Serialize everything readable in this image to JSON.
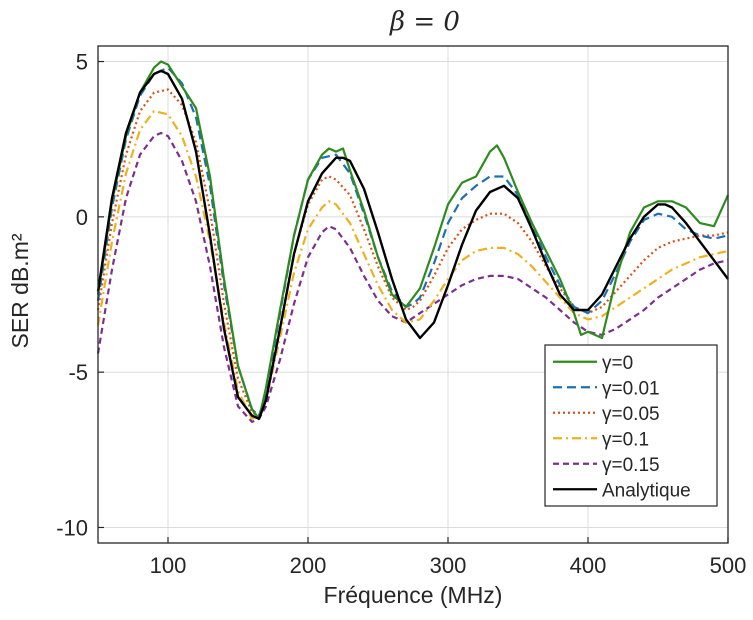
{
  "chart_data": {
    "type": "line",
    "title": "β = 0",
    "xlabel": "Fréquence (MHz)",
    "ylabel": "SER  dB.m²",
    "xlim": [
      50,
      500
    ],
    "ylim": [
      -10.5,
      5.5
    ],
    "xticks": [
      100,
      200,
      300,
      400,
      500
    ],
    "xtick_labels": [
      "100",
      "200",
      "300",
      "400",
      "500"
    ],
    "yticks": [
      5,
      0,
      -5,
      -10
    ],
    "ytick_labels": [
      "5",
      "0",
      "-5",
      "-10"
    ],
    "grid": true,
    "legend_position": "bottom-right",
    "series": [
      {
        "name": "γ=0",
        "color": "#2e8b1e",
        "dash": "solid",
        "x": [
          50,
          60,
          70,
          80,
          90,
          95,
          100,
          110,
          120,
          130,
          140,
          150,
          160,
          165,
          170,
          180,
          190,
          200,
          210,
          215,
          220,
          225,
          230,
          240,
          250,
          260,
          270,
          275,
          280,
          290,
          300,
          310,
          320,
          330,
          335,
          340,
          350,
          360,
          370,
          380,
          390,
          395,
          400,
          410,
          420,
          430,
          440,
          450,
          460,
          470,
          480,
          490,
          500
        ],
        "y": [
          -2.5,
          0.5,
          2.6,
          4.0,
          4.8,
          5.0,
          4.9,
          4.2,
          3.5,
          1.3,
          -2.0,
          -4.8,
          -6.2,
          -6.5,
          -5.5,
          -3.0,
          -0.6,
          1.2,
          2.0,
          2.2,
          2.1,
          2.2,
          1.5,
          0.2,
          -1.3,
          -2.5,
          -2.9,
          -2.6,
          -2.3,
          -1.0,
          0.4,
          1.1,
          1.3,
          2.1,
          2.3,
          1.9,
          0.8,
          -0.2,
          -1.1,
          -2.0,
          -3.1,
          -3.8,
          -3.7,
          -3.9,
          -2.0,
          -0.5,
          0.3,
          0.5,
          0.5,
          0.3,
          -0.2,
          -0.3,
          0.7
        ]
      },
      {
        "name": "γ=0.01",
        "color": "#1f6fb4",
        "dash": "long",
        "x": [
          50,
          60,
          70,
          80,
          90,
          100,
          110,
          120,
          130,
          140,
          150,
          160,
          165,
          170,
          180,
          190,
          200,
          210,
          220,
          230,
          240,
          250,
          260,
          270,
          275,
          280,
          290,
          300,
          310,
          320,
          330,
          340,
          350,
          360,
          370,
          380,
          390,
          400,
          410,
          420,
          430,
          440,
          450,
          460,
          470,
          480,
          490,
          500
        ],
        "y": [
          -2.7,
          0.3,
          2.5,
          3.9,
          4.6,
          4.8,
          4.3,
          3.2,
          1.0,
          -2.2,
          -4.8,
          -6.2,
          -6.4,
          -5.7,
          -3.1,
          -0.6,
          1.2,
          1.9,
          2.0,
          1.4,
          0.1,
          -1.3,
          -2.4,
          -2.9,
          -2.8,
          -2.6,
          -1.5,
          -0.2,
          0.6,
          1.0,
          1.3,
          1.3,
          0.7,
          -0.3,
          -1.3,
          -2.2,
          -2.9,
          -3.1,
          -2.7,
          -1.8,
          -0.8,
          -0.1,
          0.1,
          0.0,
          -0.4,
          -0.6,
          -0.7,
          -0.6
        ]
      },
      {
        "name": "γ=0.05",
        "color": "#d95319",
        "dash": "dot",
        "x": [
          50,
          60,
          70,
          80,
          90,
          100,
          110,
          120,
          130,
          140,
          150,
          160,
          165,
          170,
          180,
          190,
          200,
          210,
          215,
          220,
          230,
          240,
          250,
          260,
          270,
          275,
          280,
          290,
          300,
          310,
          320,
          330,
          340,
          350,
          360,
          370,
          380,
          390,
          400,
          410,
          420,
          430,
          440,
          450,
          460,
          470,
          480,
          490,
          500
        ],
        "y": [
          -3.0,
          -0.2,
          2.0,
          3.4,
          4.0,
          4.1,
          3.6,
          2.4,
          0.2,
          -2.8,
          -5.2,
          -6.3,
          -6.4,
          -5.9,
          -3.6,
          -1.2,
          0.4,
          1.2,
          1.3,
          1.2,
          0.7,
          -0.4,
          -1.6,
          -2.6,
          -3.0,
          -2.9,
          -2.7,
          -1.9,
          -1.0,
          -0.4,
          -0.1,
          0.1,
          0.1,
          -0.2,
          -0.8,
          -1.6,
          -2.3,
          -2.9,
          -3.1,
          -2.9,
          -2.4,
          -1.9,
          -1.4,
          -1.0,
          -0.8,
          -0.7,
          -0.6,
          -0.6,
          -0.5
        ]
      },
      {
        "name": "γ=0.1",
        "color": "#edb120",
        "dash": "dashdot",
        "x": [
          50,
          60,
          70,
          80,
          90,
          100,
          110,
          120,
          130,
          140,
          150,
          160,
          165,
          170,
          180,
          190,
          200,
          210,
          215,
          220,
          230,
          240,
          250,
          260,
          270,
          280,
          290,
          300,
          310,
          320,
          330,
          340,
          350,
          360,
          370,
          380,
          390,
          400,
          410,
          420,
          430,
          440,
          450,
          460,
          470,
          480,
          490,
          500
        ],
        "y": [
          -3.5,
          -0.8,
          1.4,
          2.8,
          3.4,
          3.3,
          2.6,
          1.3,
          -0.8,
          -3.4,
          -5.6,
          -6.5,
          -6.4,
          -5.9,
          -3.9,
          -1.8,
          -0.4,
          0.3,
          0.5,
          0.4,
          -0.2,
          -1.2,
          -2.2,
          -3.0,
          -3.4,
          -3.3,
          -2.7,
          -2.0,
          -1.4,
          -1.1,
          -1.0,
          -1.0,
          -1.2,
          -1.6,
          -2.1,
          -2.6,
          -3.1,
          -3.3,
          -3.2,
          -2.9,
          -2.6,
          -2.3,
          -2.0,
          -1.7,
          -1.5,
          -1.3,
          -1.2,
          -1.1
        ]
      },
      {
        "name": "γ=0.15",
        "color": "#7e2f8e",
        "dash": "dash",
        "x": [
          50,
          60,
          70,
          80,
          90,
          95,
          100,
          110,
          120,
          130,
          140,
          150,
          160,
          165,
          170,
          180,
          190,
          200,
          210,
          215,
          220,
          230,
          240,
          250,
          260,
          270,
          280,
          290,
          300,
          310,
          320,
          330,
          340,
          350,
          360,
          370,
          380,
          390,
          400,
          410,
          420,
          430,
          440,
          450,
          460,
          470,
          480,
          490,
          500
        ],
        "y": [
          -4.4,
          -1.7,
          0.6,
          2.0,
          2.6,
          2.7,
          2.6,
          1.8,
          0.5,
          -1.6,
          -4.2,
          -6.1,
          -6.6,
          -6.5,
          -6.1,
          -4.6,
          -2.8,
          -1.3,
          -0.5,
          -0.3,
          -0.4,
          -1.0,
          -1.9,
          -2.7,
          -3.2,
          -3.4,
          -3.1,
          -2.8,
          -2.5,
          -2.2,
          -2.0,
          -1.9,
          -1.9,
          -2.0,
          -2.3,
          -2.6,
          -3.0,
          -3.4,
          -3.7,
          -3.8,
          -3.6,
          -3.3,
          -3.0,
          -2.6,
          -2.3,
          -2.0,
          -1.7,
          -1.5,
          -1.4
        ]
      },
      {
        "name": "Analytique",
        "color": "#000000",
        "dash": "solid",
        "x": [
          50,
          60,
          70,
          80,
          90,
          95,
          100,
          110,
          120,
          130,
          140,
          150,
          160,
          165,
          170,
          180,
          190,
          200,
          210,
          220,
          225,
          230,
          240,
          250,
          260,
          270,
          280,
          290,
          300,
          310,
          320,
          330,
          340,
          350,
          360,
          370,
          380,
          390,
          400,
          410,
          420,
          430,
          440,
          450,
          455,
          460,
          470,
          480,
          490,
          500
        ],
        "y": [
          -2.4,
          0.6,
          2.7,
          4.0,
          4.6,
          4.7,
          4.6,
          3.8,
          2.1,
          -0.6,
          -3.6,
          -5.8,
          -6.4,
          -6.5,
          -5.9,
          -3.6,
          -1.2,
          0.5,
          1.4,
          1.9,
          1.9,
          1.8,
          0.9,
          -0.5,
          -2.0,
          -3.3,
          -3.9,
          -3.4,
          -2.2,
          -0.9,
          0.2,
          0.8,
          1.0,
          0.6,
          -0.4,
          -1.5,
          -2.5,
          -3.0,
          -3.0,
          -2.5,
          -1.6,
          -0.7,
          0.0,
          0.4,
          0.4,
          0.3,
          -0.2,
          -0.8,
          -1.4,
          -2.0
        ]
      }
    ]
  }
}
